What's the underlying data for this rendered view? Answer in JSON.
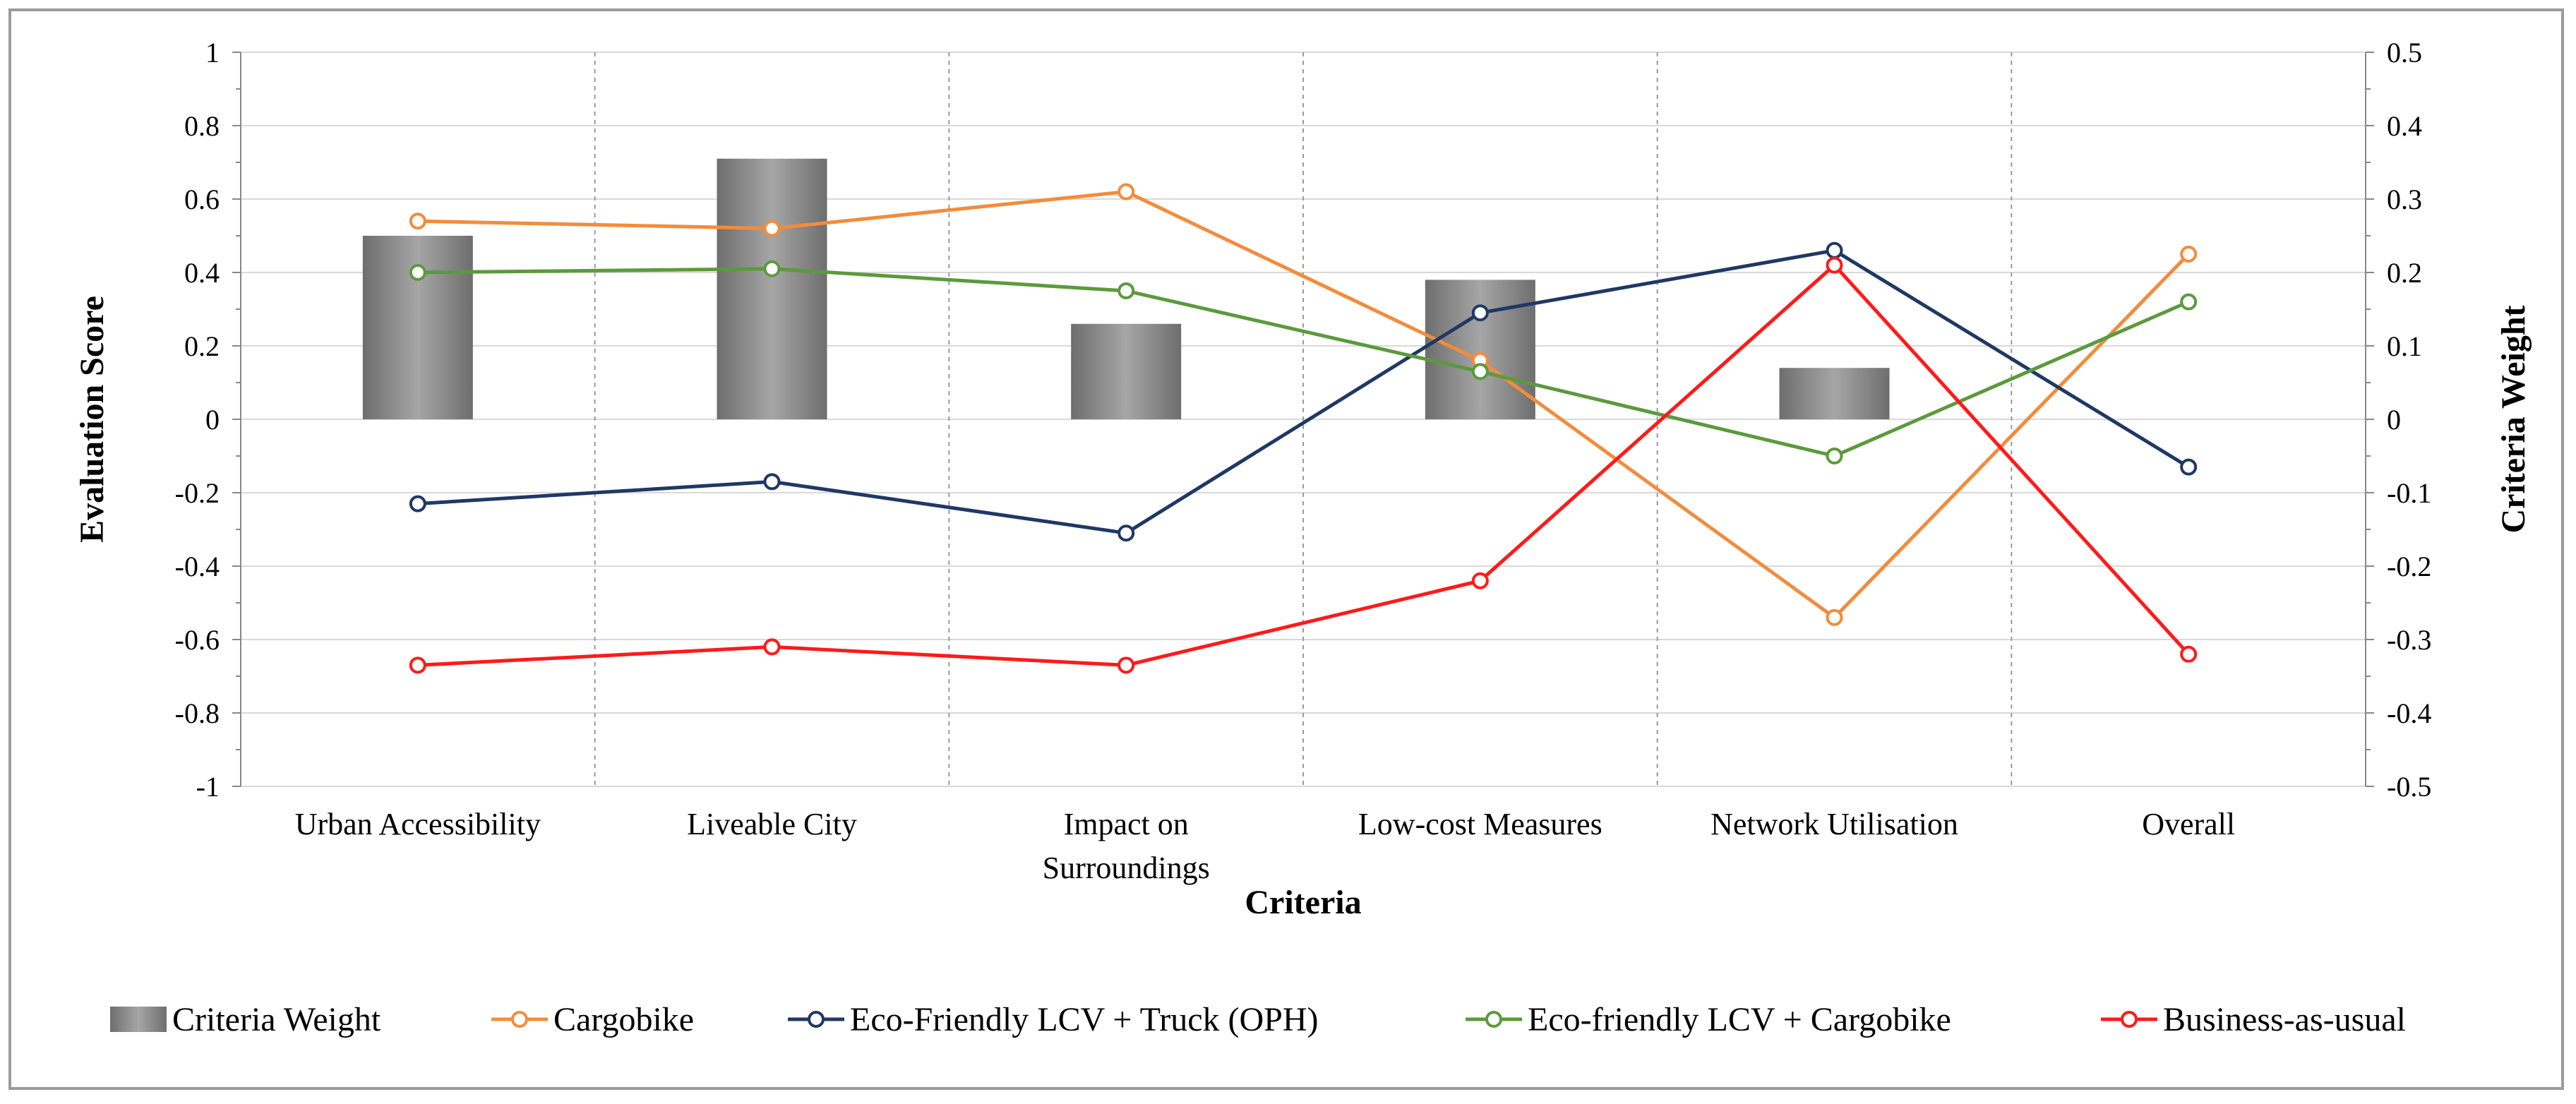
{
  "chart_data": {
    "type": "bar+line",
    "title": "",
    "xlabel": "Criteria",
    "ylabel": "Evaluation Score",
    "y2label": "Criteria Weight",
    "ylim": [
      -1,
      1
    ],
    "y2lim": [
      -0.5,
      0.5
    ],
    "yticks": [
      "1",
      "0.8",
      "0.6",
      "0.4",
      "0.2",
      "0",
      "-0.2",
      "-0.4",
      "-0.6",
      "-0.8",
      "-1"
    ],
    "y2ticks": [
      "0.5",
      "0.4",
      "0.3",
      "0.2",
      "0.1",
      "0",
      "-0.1",
      "-0.2",
      "-0.3",
      "-0.4",
      "-0.5"
    ],
    "categories": [
      [
        "Urban Accessibility"
      ],
      [
        "Liveable City"
      ],
      [
        "Impact on",
        "Surroundings"
      ],
      [
        "Low-cost Measures"
      ],
      [
        "Network Utilisation"
      ],
      [
        "Overall"
      ]
    ],
    "bars": {
      "name": "Criteria Weight",
      "axis": "secondary",
      "values": [
        0.25,
        0.355,
        0.13,
        0.19,
        0.07,
        null
      ],
      "color": "#808080"
    },
    "series": [
      {
        "name": "Cargobike",
        "color": "#F28C3C",
        "values": [
          0.54,
          0.52,
          0.62,
          0.16,
          -0.54,
          0.45
        ]
      },
      {
        "name": "Eco-Friendly LCV + Truck (OPH)",
        "color": "#1F3864",
        "values": [
          -0.23,
          -0.17,
          -0.31,
          0.29,
          0.46,
          -0.13
        ]
      },
      {
        "name": "Eco-friendly LCV + Cargobike",
        "color": "#5B9A3C",
        "values": [
          0.4,
          0.41,
          0.35,
          0.13,
          -0.1,
          0.32
        ]
      },
      {
        "name": "Business-as-usual",
        "color": "#FF1A1A",
        "values": [
          -0.67,
          -0.62,
          -0.67,
          -0.44,
          0.42,
          -0.64
        ]
      }
    ],
    "legend": {
      "position": "bottom"
    },
    "grid": true
  }
}
